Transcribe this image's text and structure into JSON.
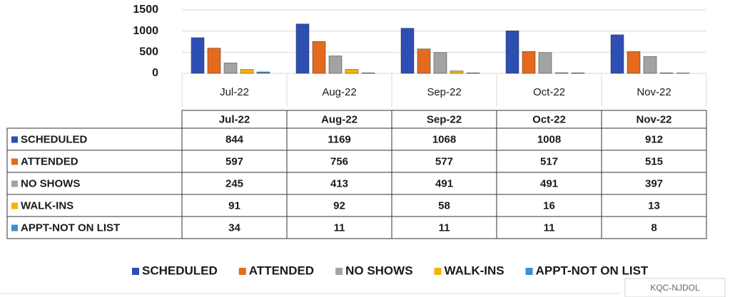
{
  "chart_data": {
    "type": "bar",
    "categories": [
      "Jul-22",
      "Aug-22",
      "Sep-22",
      "Oct-22",
      "Nov-22"
    ],
    "series": [
      {
        "name": "SCHEDULED",
        "color": "#2d4eb3",
        "values": [
          844,
          1169,
          1068,
          1008,
          912
        ]
      },
      {
        "name": "ATTENDED",
        "color": "#e46a1e",
        "values": [
          597,
          756,
          577,
          517,
          515
        ]
      },
      {
        "name": "NO SHOWS",
        "color": "#a3a3a3",
        "values": [
          245,
          413,
          491,
          491,
          397
        ]
      },
      {
        "name": "WALK-INS",
        "color": "#f4b400",
        "values": [
          91,
          92,
          58,
          16,
          13
        ]
      },
      {
        "name": "APPT-NOT ON LIST",
        "color": "#3d8fd1",
        "values": [
          34,
          11,
          11,
          11,
          8
        ]
      }
    ],
    "ylim": [
      0,
      1500
    ],
    "yticks": [
      0,
      500,
      1000,
      1500
    ],
    "grid": true,
    "legend": "bottom"
  },
  "stamp": "KQC-NJDOL"
}
